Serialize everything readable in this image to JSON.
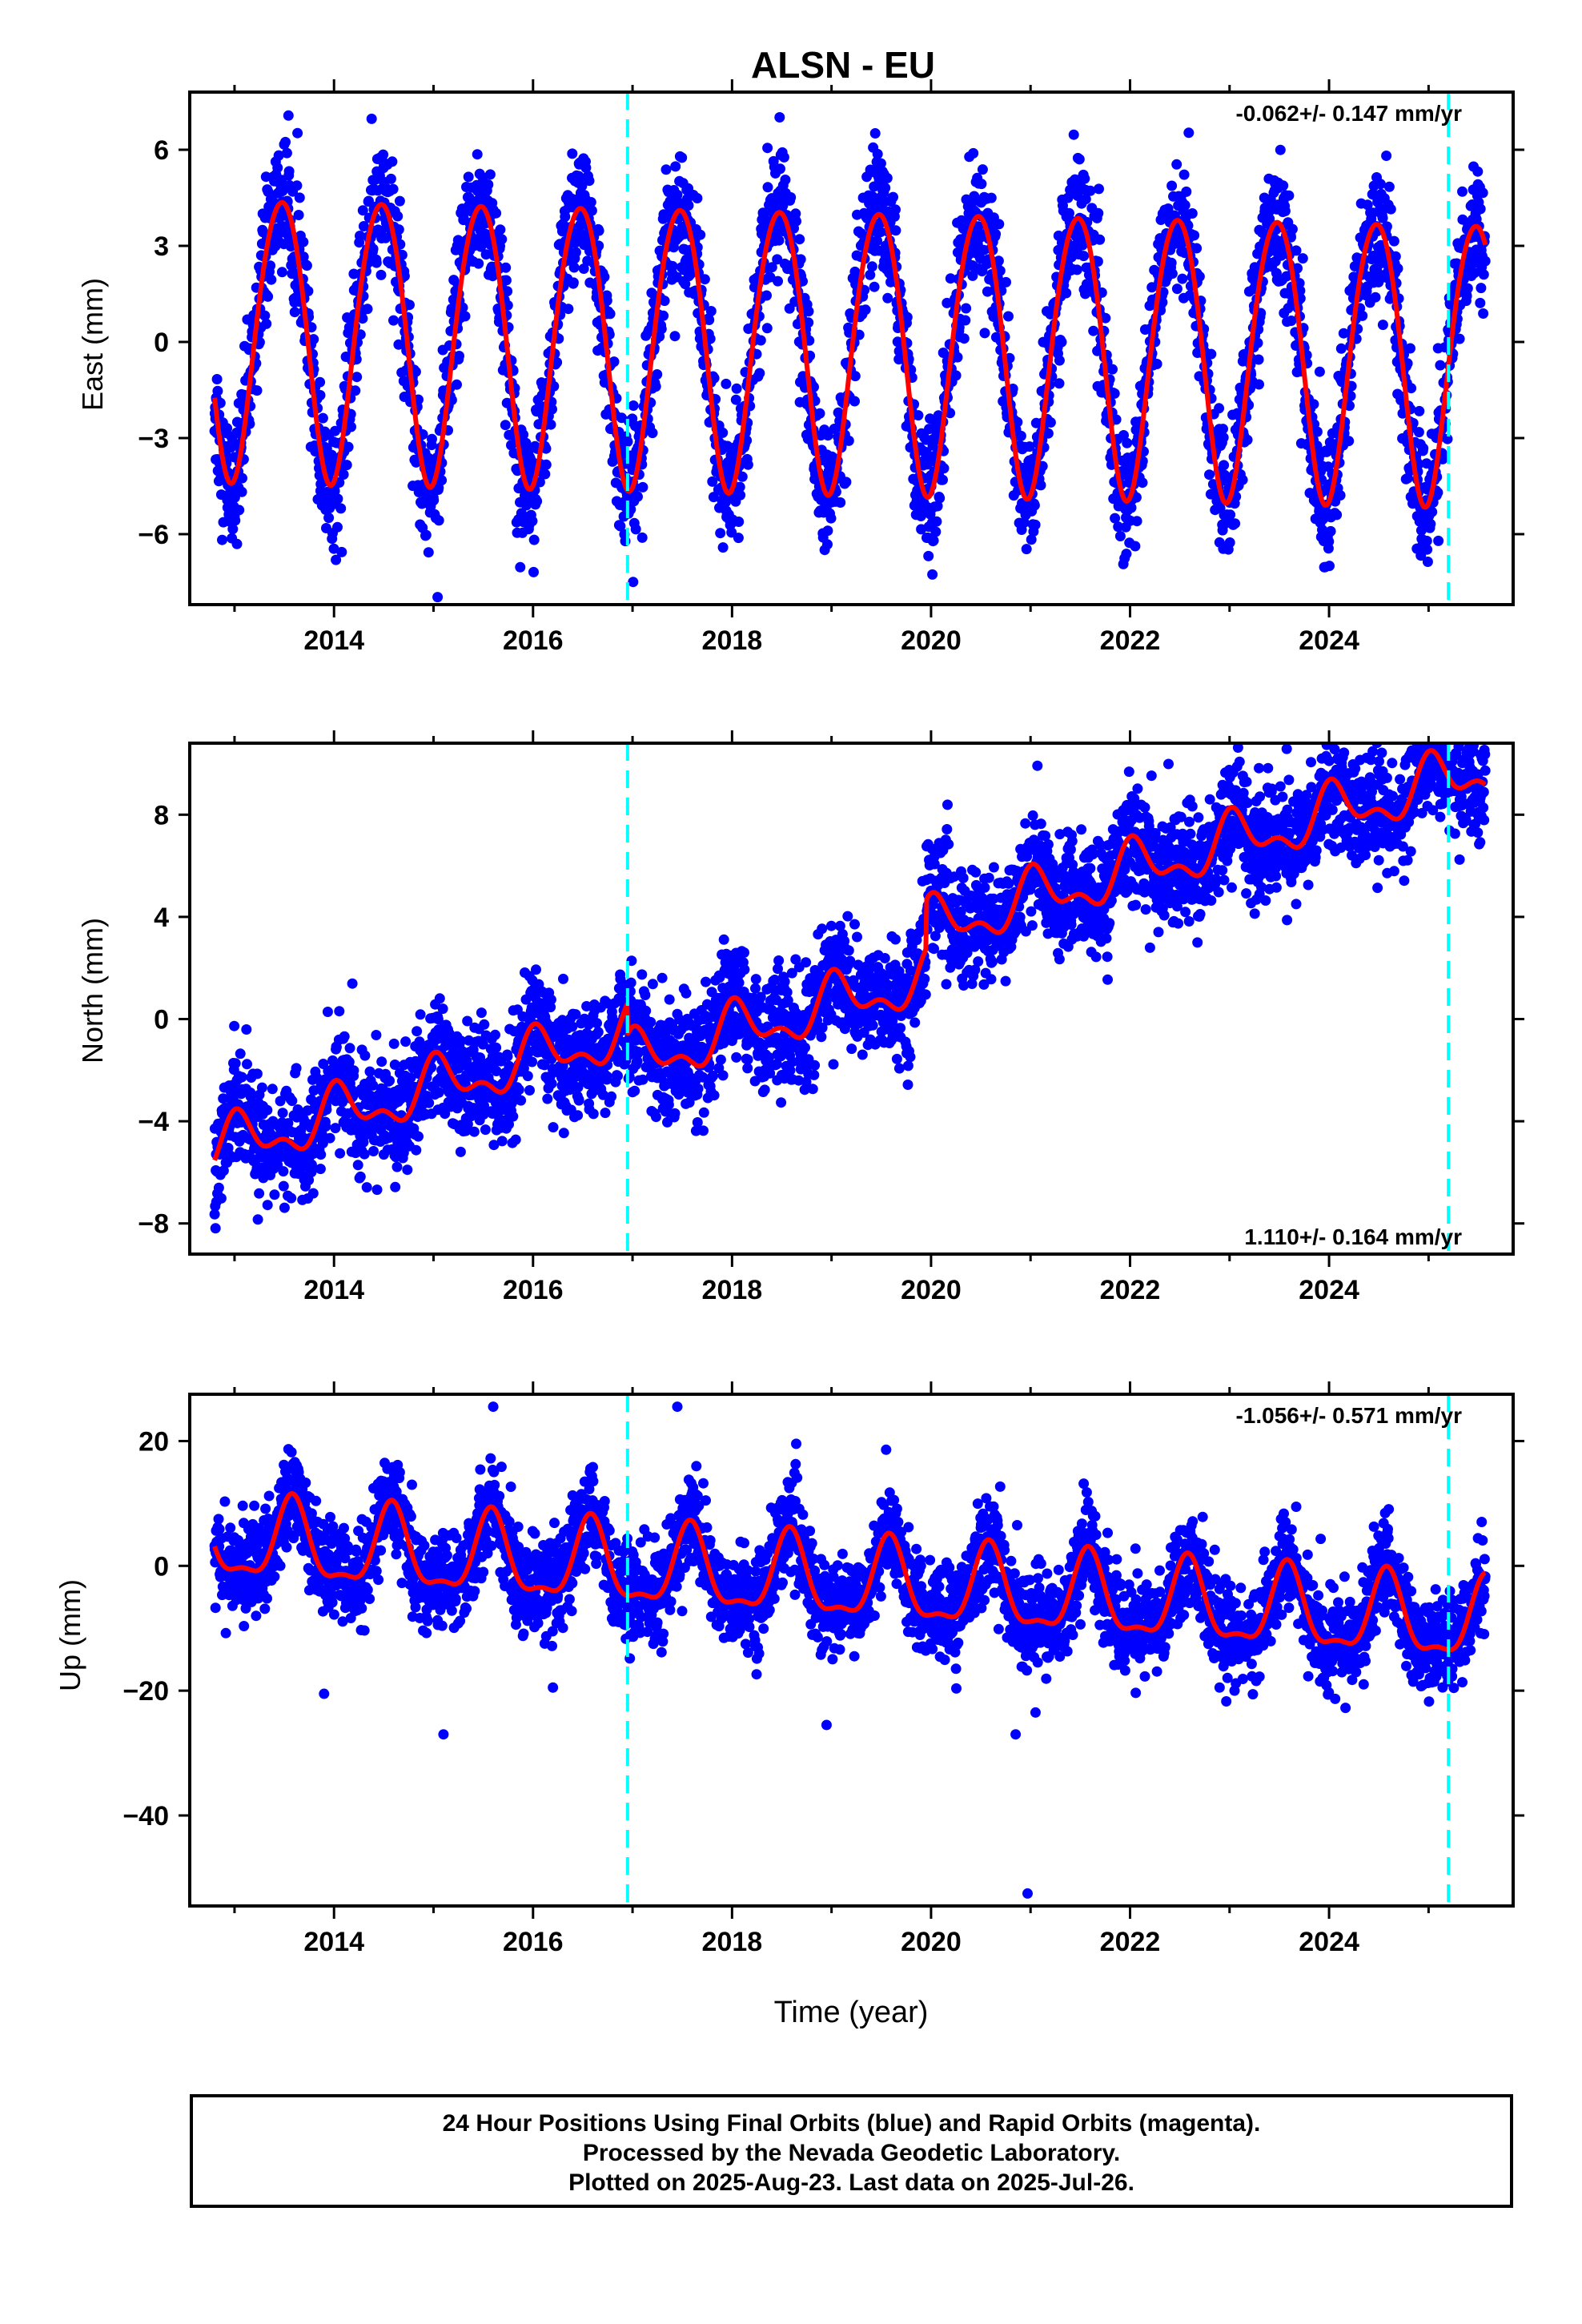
{
  "title": "ALSN - EU",
  "xlabel": "Time (year)",
  "colors": {
    "points": "#0000ff",
    "fit": "#ff0000",
    "events": "#00ffff",
    "frame": "#000000"
  },
  "footer": {
    "line1": "24 Hour Positions Using Final Orbits (blue) and Rapid Orbits (magenta).",
    "line2": "Processed by the Nevada Geodetic Laboratory.",
    "line3": "Plotted on 2025-Aug-23. Last data on 2025-Jul-26."
  },
  "chart_data": [
    {
      "type": "scatter",
      "ylabel": "East (mm)",
      "rate": "-0.062+/- 0.147 mm/yr",
      "rate_position": "top-right",
      "xlim": [
        2012.55,
        2025.85
      ],
      "ylim": [
        -8.2,
        7.8
      ],
      "xticks": [
        2014,
        2016,
        2018,
        2020,
        2022,
        2024
      ],
      "xtick_labels": [
        "2014",
        "2016",
        "2018",
        "2020",
        "2022",
        "2024"
      ],
      "yticks": [
        -6,
        -3,
        0,
        3,
        6
      ],
      "ytick_labels": [
        "−6",
        "−3",
        "0",
        "3",
        "6"
      ],
      "events": [
        2016.95,
        2025.2
      ],
      "data_range": [
        2012.8,
        2025.57
      ],
      "fit": {
        "offset": -0.1,
        "trend": -0.062,
        "annual_amplitude": 4.4,
        "annual_peak": 2013.47,
        "semiannual_amplitude": 0.3,
        "semiannual_peak": 2013.2
      },
      "scatter_sd": 1.0
    },
    {
      "type": "scatter",
      "ylabel": "North (mm)",
      "rate": "1.110+/- 0.164 mm/yr",
      "rate_position": "bottom-right",
      "xlim": [
        2012.55,
        2025.85
      ],
      "ylim": [
        -9.2,
        10.8
      ],
      "xticks": [
        2014,
        2016,
        2018,
        2020,
        2022,
        2024
      ],
      "xtick_labels": [
        "2014",
        "2016",
        "2018",
        "2020",
        "2022",
        "2024"
      ],
      "yticks": [
        -8,
        -4,
        0,
        4,
        8
      ],
      "ytick_labels": [
        "−8",
        "−4",
        "0",
        "4",
        "8"
      ],
      "events": [
        2016.95,
        2025.2
      ],
      "data_range": [
        2012.8,
        2025.57
      ],
      "fit": {
        "value_at_2013": -4.9,
        "trend": 1.11,
        "annual_amplitude": 0.9,
        "annual_peak": 2013.05,
        "semiannual_amplitude": 0.5,
        "semiannual_peak": 2013.0
      },
      "jumps": [
        {
          "x": 2016.95,
          "dy": -1.2
        },
        {
          "x": 2019.95,
          "dy": 1.9
        }
      ],
      "scatter_sd": 1.1
    },
    {
      "type": "scatter",
      "ylabel": "Up (mm)",
      "rate": "-1.056+/- 0.571 mm/yr",
      "rate_position": "top-right",
      "xlim": [
        2012.55,
        2025.85
      ],
      "ylim": [
        -54.5,
        27.5
      ],
      "xticks": [
        2014,
        2016,
        2018,
        2020,
        2022,
        2024
      ],
      "xtick_labels": [
        "2014",
        "2016",
        "2018",
        "2020",
        "2022",
        "2024"
      ],
      "yticks": [
        -40,
        -20,
        0,
        20
      ],
      "ytick_labels": [
        "−40",
        "−20",
        "0",
        "20"
      ],
      "events": [
        2016.95,
        2025.2
      ],
      "data_range": [
        2012.8,
        2025.57
      ],
      "fit": {
        "value_at_2013": 3.8,
        "trend": -1.056,
        "annual_amplitude": 6.2,
        "annual_peak": 2013.58,
        "semiannual_amplitude": 2.2,
        "semiannual_peak": 2013.58
      },
      "scatter_sd": 3.8,
      "outliers": [
        [
          2020.97,
          -52.5
        ],
        [
          2015.1,
          -27
        ],
        [
          2018.95,
          -25.5
        ],
        [
          2020.85,
          -27
        ],
        [
          2013.9,
          -20.5
        ],
        [
          2016.2,
          -19.5
        ],
        [
          2022.9,
          -19.5
        ],
        [
          2021.05,
          -23.5
        ],
        [
          2023.05,
          -20
        ],
        [
          2017.45,
          25.5
        ],
        [
          2015.6,
          25.5
        ]
      ]
    }
  ]
}
